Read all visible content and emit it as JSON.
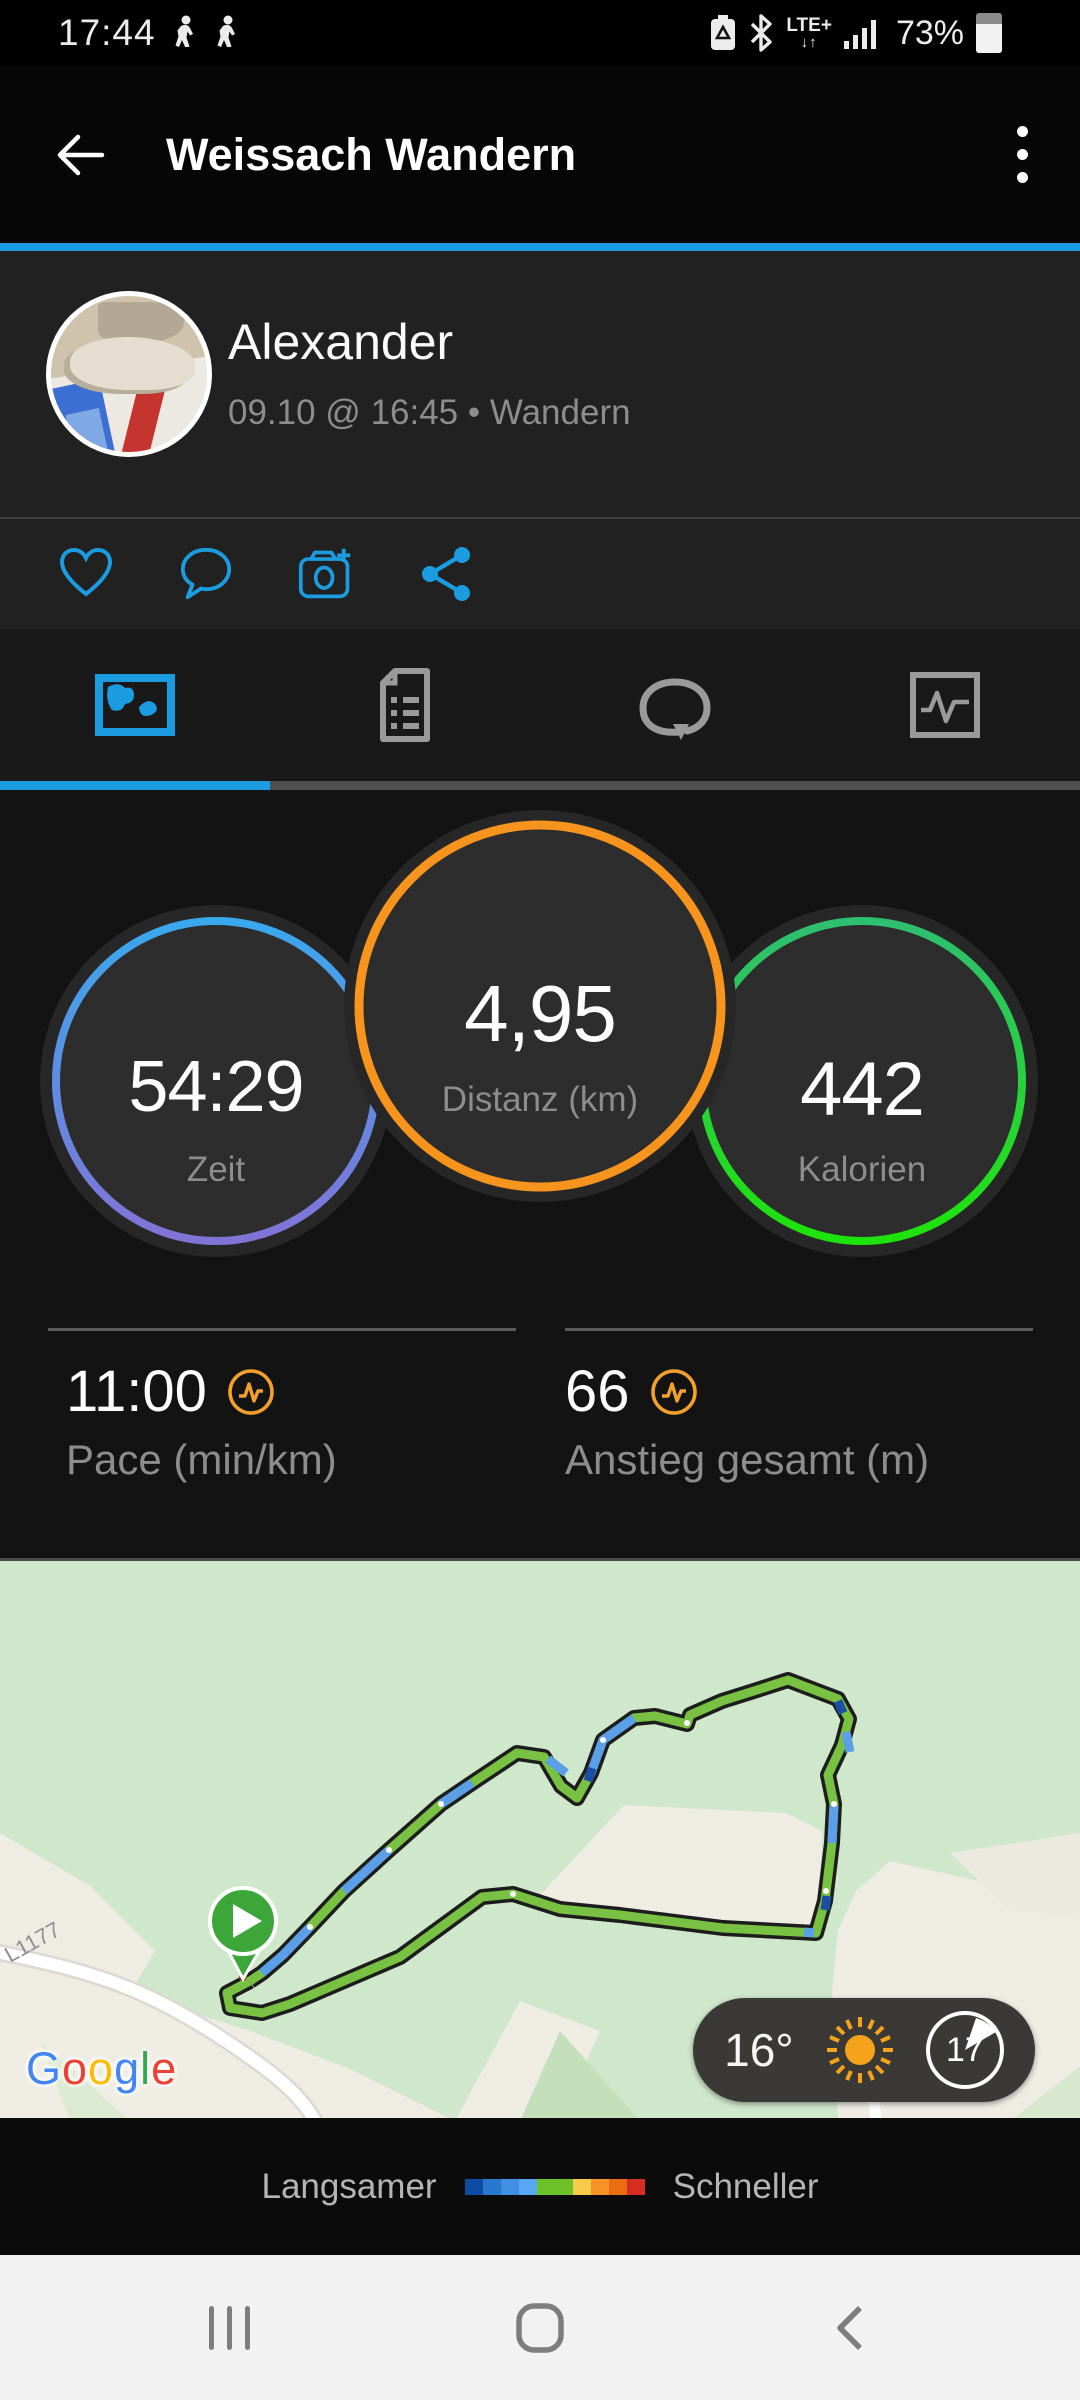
{
  "status_bar": {
    "time": "17:44",
    "network": "LTE+",
    "net_arrows": "↓↑",
    "battery_percent": "73%"
  },
  "header": {
    "title": "Weissach Wandern"
  },
  "profile": {
    "name": "Alexander",
    "meta": "09.10 @ 16:45 • Wandern"
  },
  "tabs": [
    {
      "name": "map-tab",
      "active": true
    },
    {
      "name": "details-tab",
      "active": false
    },
    {
      "name": "laps-tab",
      "active": false
    },
    {
      "name": "charts-tab",
      "active": false
    }
  ],
  "summary": {
    "circles": [
      {
        "value": "54:29",
        "label": "Zeit"
      },
      {
        "value": "4,95",
        "label": "Distanz (km)"
      },
      {
        "value": "442",
        "label": "Kalorien"
      }
    ],
    "stats": [
      {
        "value": "11:00",
        "label": "Pace (min/km)"
      },
      {
        "value": "66",
        "label": "Anstieg gesamt (m)"
      }
    ]
  },
  "map": {
    "road_label": "L1177",
    "attribution_letters": [
      {
        "ch": "G",
        "color": "#4285F4"
      },
      {
        "ch": "o",
        "color": "#EA4335"
      },
      {
        "ch": "o",
        "color": "#FBBC05"
      },
      {
        "ch": "g",
        "color": "#4285F4"
      },
      {
        "ch": "l",
        "color": "#34A853"
      },
      {
        "ch": "e",
        "color": "#EA4335"
      }
    ],
    "weather": {
      "temperature": "16°",
      "compass_value": "17"
    }
  },
  "legend": {
    "slow_label": "Langsamer",
    "fast_label": "Schneller",
    "colors": [
      "#0c4da2",
      "#2878cd",
      "#3f8fe2",
      "#58a7f5",
      "#6cc028",
      "#6cc028",
      "#f8cb4a",
      "#f79227",
      "#eb6d12",
      "#d62e22"
    ]
  },
  "colors": {
    "accent_blue": "#1b9ce0",
    "ring_orange": "#f7941e",
    "ring_blue_top": "#3aa8ec",
    "ring_blue_bottom": "#8273d7",
    "ring_green_top": "#2fbf71",
    "ring_green_bottom": "#1fe30c",
    "route_green": "#79c142",
    "route_blue": "#5b9fe8",
    "pin_green": "#3da639"
  }
}
